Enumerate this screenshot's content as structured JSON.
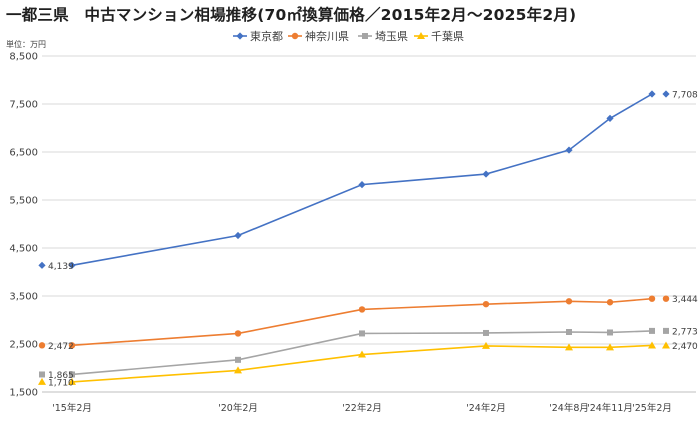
{
  "chart_data": {
    "type": "line",
    "title": "一都三県　中古マンション相場推移(70㎡換算価格／2015年2月～2025年2月)",
    "unit_label": "単位：万円",
    "categories": [
      "'15年2月",
      "'20年2月",
      "'22年2月",
      "'24年2月",
      "'24年8月",
      "'24年11月",
      "'25年2月"
    ],
    "x_index": [
      0,
      5,
      7,
      9,
      9.5,
      9.75,
      10
    ],
    "ylim": [
      1500,
      8500
    ],
    "yticks": [
      1500,
      2500,
      3500,
      4500,
      5500,
      6500,
      7500,
      8500
    ],
    "ytick_labels": [
      "1,500",
      "2,500",
      "3,500",
      "4,500",
      "5,500",
      "6,500",
      "7,500",
      "8,500"
    ],
    "grid": true,
    "legend_position": "top",
    "series": [
      {
        "name": "東京都",
        "color": "#4472c4",
        "marker": "diamond",
        "values": [
          4139,
          4760,
          5820,
          6040,
          6540,
          7200,
          7708
        ],
        "start_label": "4,139",
        "end_label": "7,708"
      },
      {
        "name": "神奈川県",
        "color": "#ed7d31",
        "marker": "circle",
        "values": [
          2472,
          2720,
          3220,
          3330,
          3390,
          3370,
          3444
        ],
        "start_label": "2,472",
        "end_label": "3,444"
      },
      {
        "name": "埼玉県",
        "color": "#a5a5a5",
        "marker": "square",
        "values": [
          1865,
          2170,
          2720,
          2730,
          2750,
          2740,
          2773
        ],
        "start_label": "1,865",
        "end_label": "2,773"
      },
      {
        "name": "千葉県",
        "color": "#ffc000",
        "marker": "triangle",
        "values": [
          1710,
          1950,
          2280,
          2460,
          2430,
          2430,
          2470
        ],
        "start_label": "1,710",
        "end_label": "2,470"
      }
    ]
  }
}
